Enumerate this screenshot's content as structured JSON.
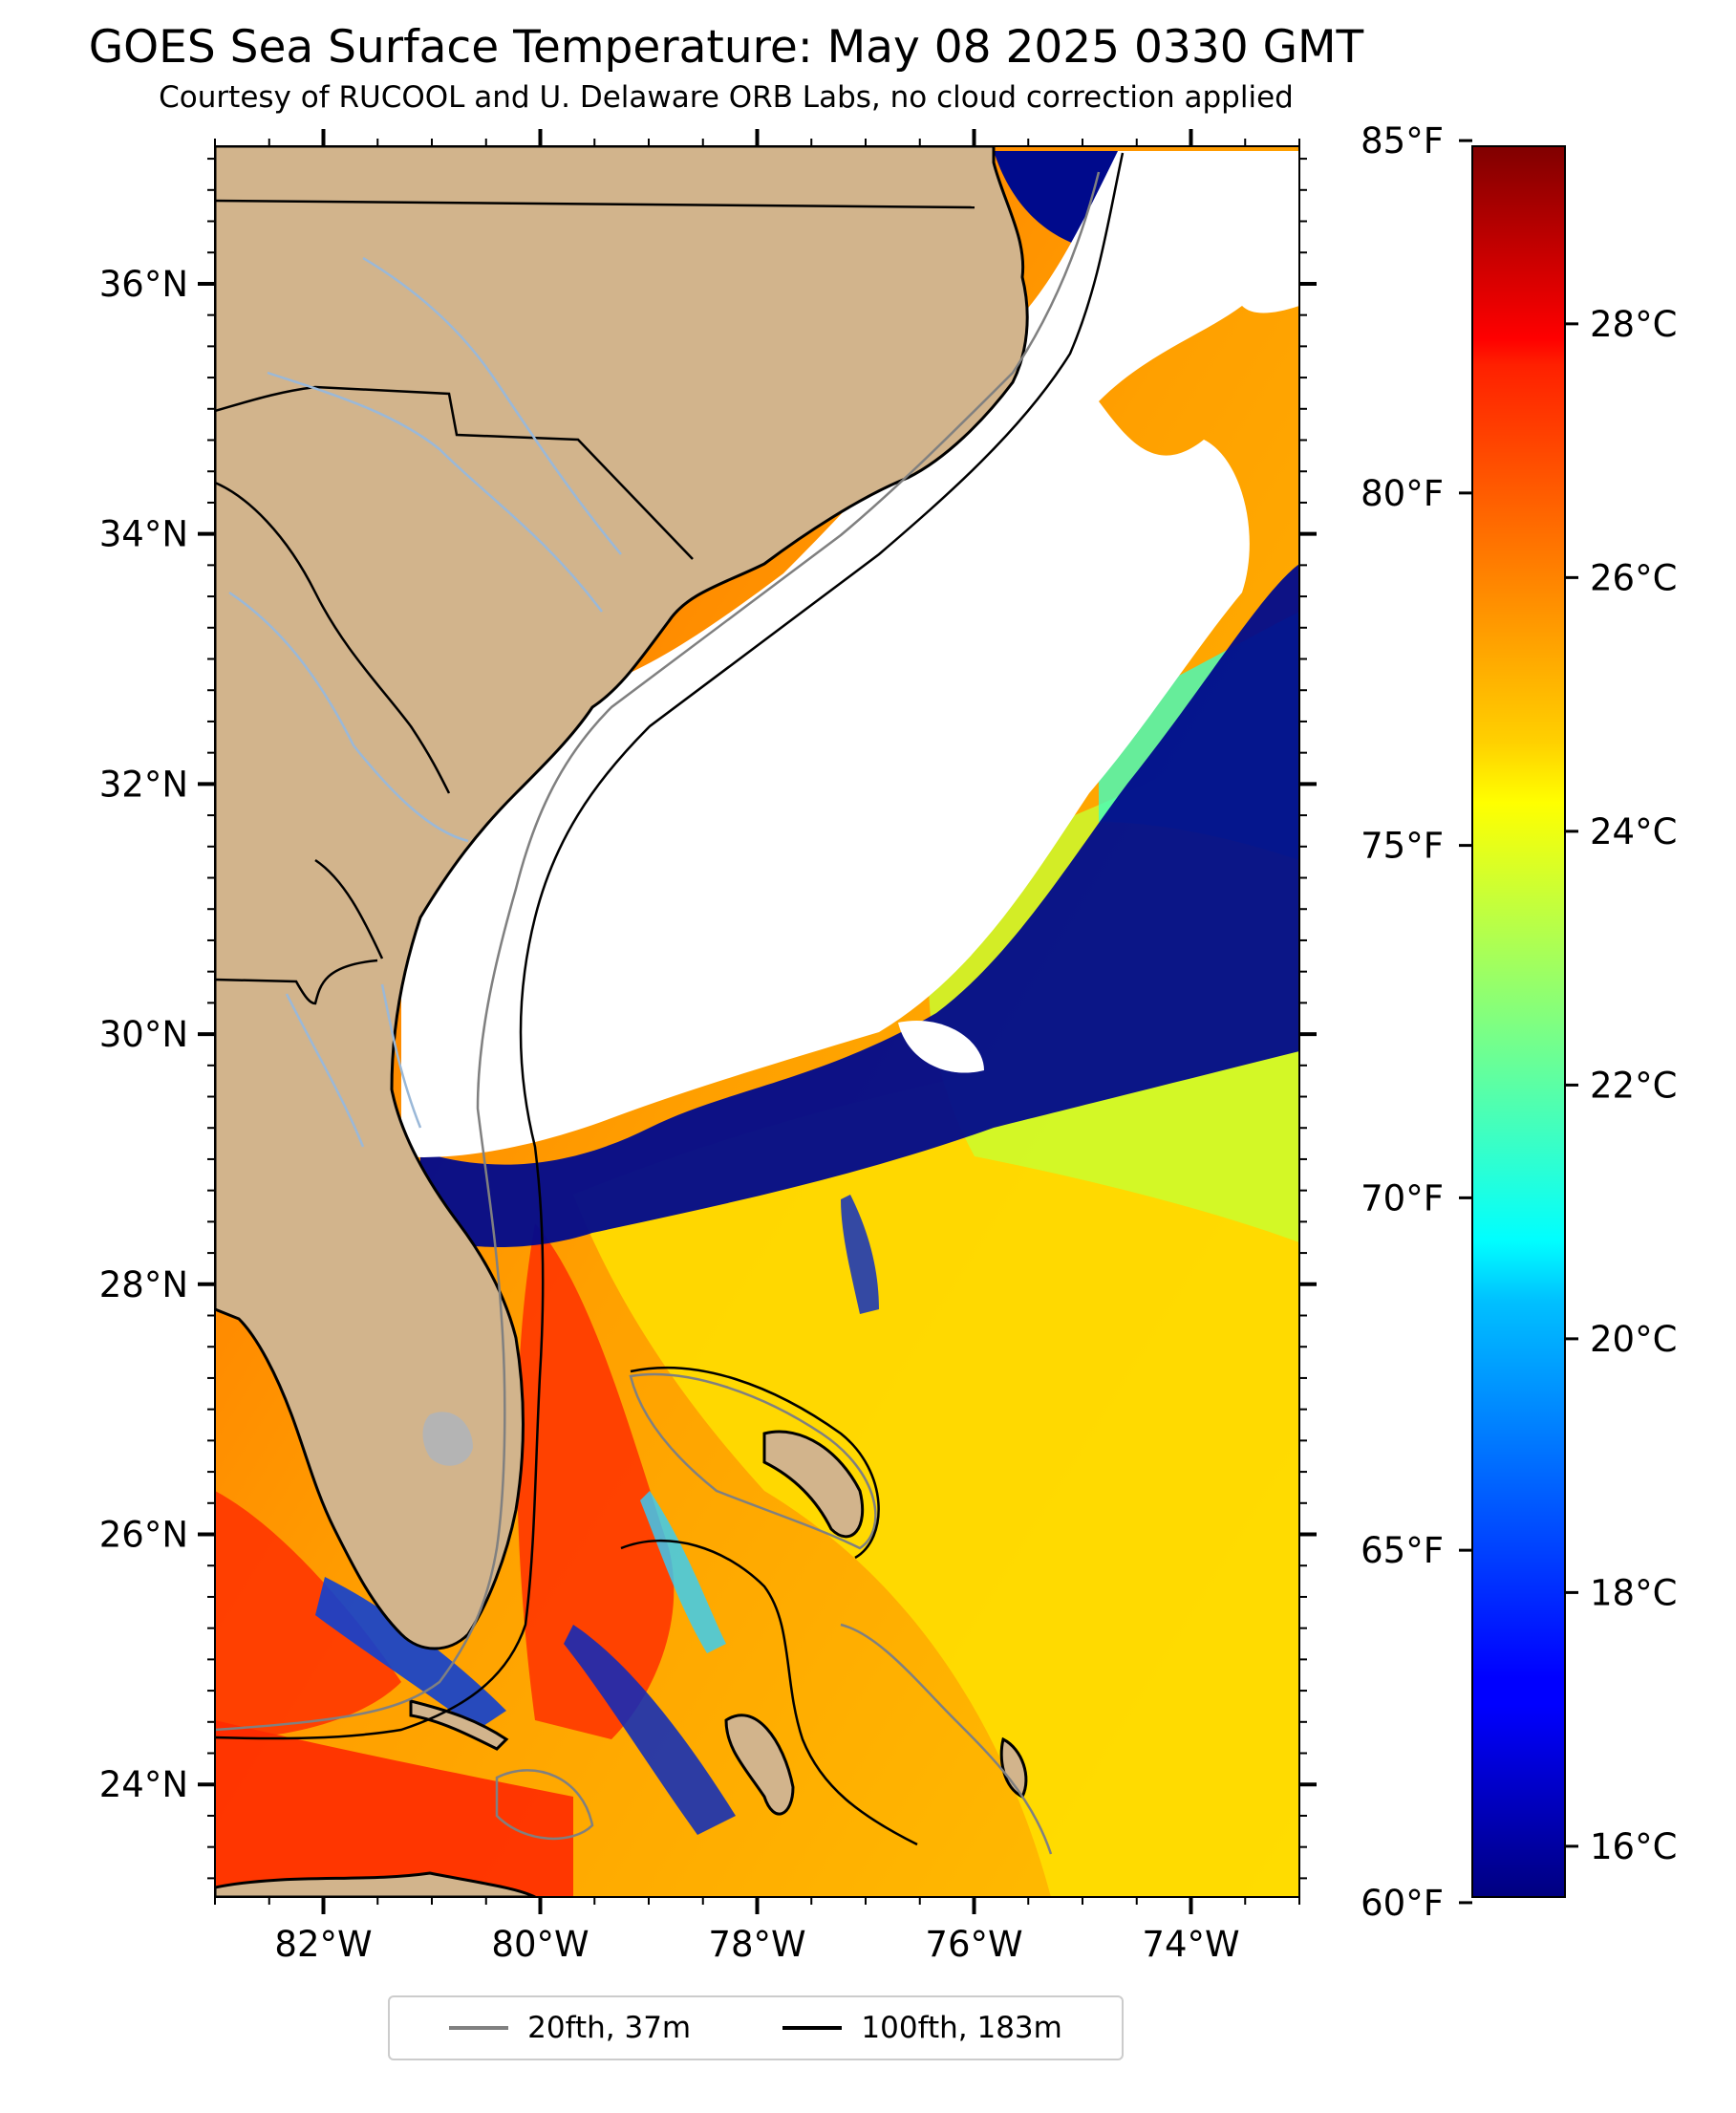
{
  "title": "GOES Sea Surface Temperature: May 08 2025 0330 GMT",
  "subtitle": "Courtesy of RUCOOL and U. Delaware ORB Labs, no cloud correction applied",
  "map": {
    "lon_range": [
      -83,
      -73
    ],
    "lat_range": [
      23.1,
      37.1
    ],
    "lat_ticks": [
      {
        "value": 36,
        "label": "36°N"
      },
      {
        "value": 34,
        "label": "34°N"
      },
      {
        "value": 32,
        "label": "32°N"
      },
      {
        "value": 30,
        "label": "30°N"
      },
      {
        "value": 28,
        "label": "28°N"
      },
      {
        "value": 26,
        "label": "26°N"
      },
      {
        "value": 24,
        "label": "24°N"
      }
    ],
    "lon_ticks": [
      {
        "value": -82,
        "label": "82°W"
      },
      {
        "value": -80,
        "label": "80°W"
      },
      {
        "value": -78,
        "label": "78°W"
      },
      {
        "value": -76,
        "label": "76°W"
      },
      {
        "value": -74,
        "label": "74°W"
      }
    ],
    "colors": {
      "land": "#d2b48c",
      "cloud": "#ffffff",
      "rivers": "#9ab8d8",
      "coast": "#000000"
    }
  },
  "colorbar": {
    "colormap": "jet",
    "celsius_range": [
      15.6,
      29.4
    ],
    "celsius_ticks": [
      {
        "value": 16,
        "label": "16°C"
      },
      {
        "value": 18,
        "label": "18°C"
      },
      {
        "value": 20,
        "label": "20°C"
      },
      {
        "value": 22,
        "label": "22°C"
      },
      {
        "value": 24,
        "label": "24°C"
      },
      {
        "value": 26,
        "label": "26°C"
      },
      {
        "value": 28,
        "label": "28°C"
      }
    ],
    "fahrenheit_ticks": [
      {
        "value": 60,
        "label": "60°F"
      },
      {
        "value": 65,
        "label": "65°F"
      },
      {
        "value": 70,
        "label": "70°F"
      },
      {
        "value": 75,
        "label": "75°F"
      },
      {
        "value": 80,
        "label": "80°F"
      },
      {
        "value": 85,
        "label": "85°F"
      }
    ]
  },
  "legend": [
    {
      "label": "20fth, 37m",
      "color": "#808080"
    },
    {
      "label": "100fth, 183m",
      "color": "#000000"
    }
  ]
}
